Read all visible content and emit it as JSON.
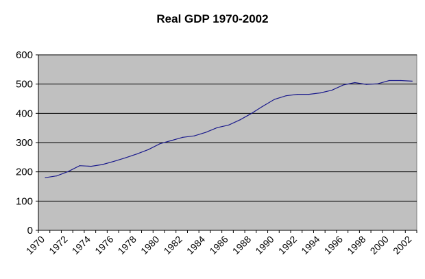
{
  "chart_data": {
    "type": "line",
    "title": "Real GDP 1970-2002",
    "xlabel": "",
    "ylabel": "",
    "ylim": [
      0,
      600
    ],
    "yticks": [
      0,
      100,
      200,
      300,
      400,
      500,
      600
    ],
    "xticks": [
      1970,
      1972,
      1974,
      1976,
      1978,
      1980,
      1982,
      1984,
      1986,
      1988,
      1990,
      1992,
      1994,
      1996,
      1998,
      2000,
      2002
    ],
    "grid": true,
    "legend": "none",
    "series": [
      {
        "name": "Real GDP",
        "x": [
          1970,
          1971,
          1972,
          1973,
          1974,
          1975,
          1976,
          1977,
          1978,
          1979,
          1980,
          1981,
          1982,
          1983,
          1984,
          1985,
          1986,
          1987,
          1988,
          1989,
          1990,
          1991,
          1992,
          1993,
          1994,
          1995,
          1996,
          1997,
          1998,
          1999,
          2000,
          2001,
          2002
        ],
        "values": [
          180,
          186,
          201,
          221,
          219,
          225,
          236,
          248,
          261,
          276,
          296,
          307,
          318,
          323,
          335,
          351,
          360,
          378,
          400,
          425,
          448,
          460,
          465,
          465,
          470,
          479,
          497,
          505,
          499,
          501,
          512,
          512,
          510
        ]
      }
    ],
    "colors": {
      "plot_bg": "#c0c0c0",
      "line": "#1a1a8c",
      "grid": "#000000"
    }
  }
}
